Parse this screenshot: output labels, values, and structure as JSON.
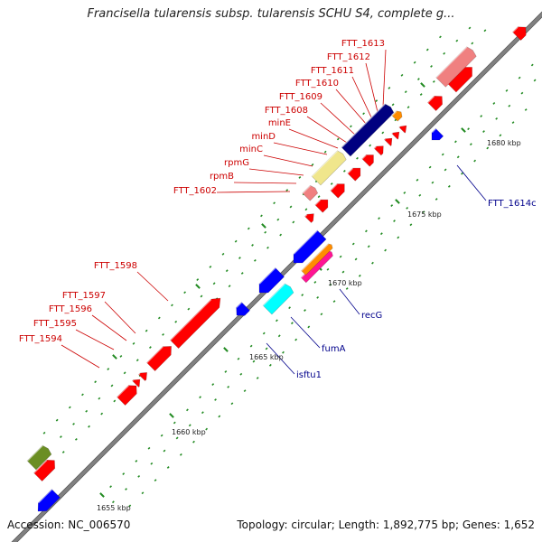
{
  "title": "Francisella tularensis subsp. tularensis SCHU S4, complete g...",
  "footer": {
    "accession": "Accession: NC_006570",
    "summary": "Topology: circular; Length: 1,892,775 bp; Genes: 1,652"
  },
  "scale_labels": [
    "1655 kbp",
    "1660 kbp",
    "1665 kbp",
    "1670 kbp",
    "1675 kbp",
    "1680 kbp"
  ],
  "red_labels": [
    "FTT_1613",
    "FTT_1612",
    "FTT_1611",
    "FTT_1610",
    "FTT_1609",
    "FTT_1608",
    "minE",
    "minD",
    "minC",
    "rpmG",
    "rpmB",
    "FTT_1602",
    "FTT_1598",
    "FTT_1597",
    "FTT_1596",
    "FTT_1595",
    "FTT_1594"
  ],
  "blue_labels": [
    "FTT_1614c",
    "recG",
    "fumA",
    "isftu1"
  ],
  "colors": {
    "forward_gene": "#ff0000",
    "reverse_gene": "#0000ff",
    "navy_gene": "#000080",
    "pink_gene": "#f08080",
    "khaki_gene": "#f0e68c",
    "orange_gene": "#ff8c00",
    "magenta_gene": "#ff1493",
    "cyan_gene": "#00ffff",
    "olive_gene": "#6b8e23",
    "backbone": "#808080",
    "tick": "#228b22"
  }
}
